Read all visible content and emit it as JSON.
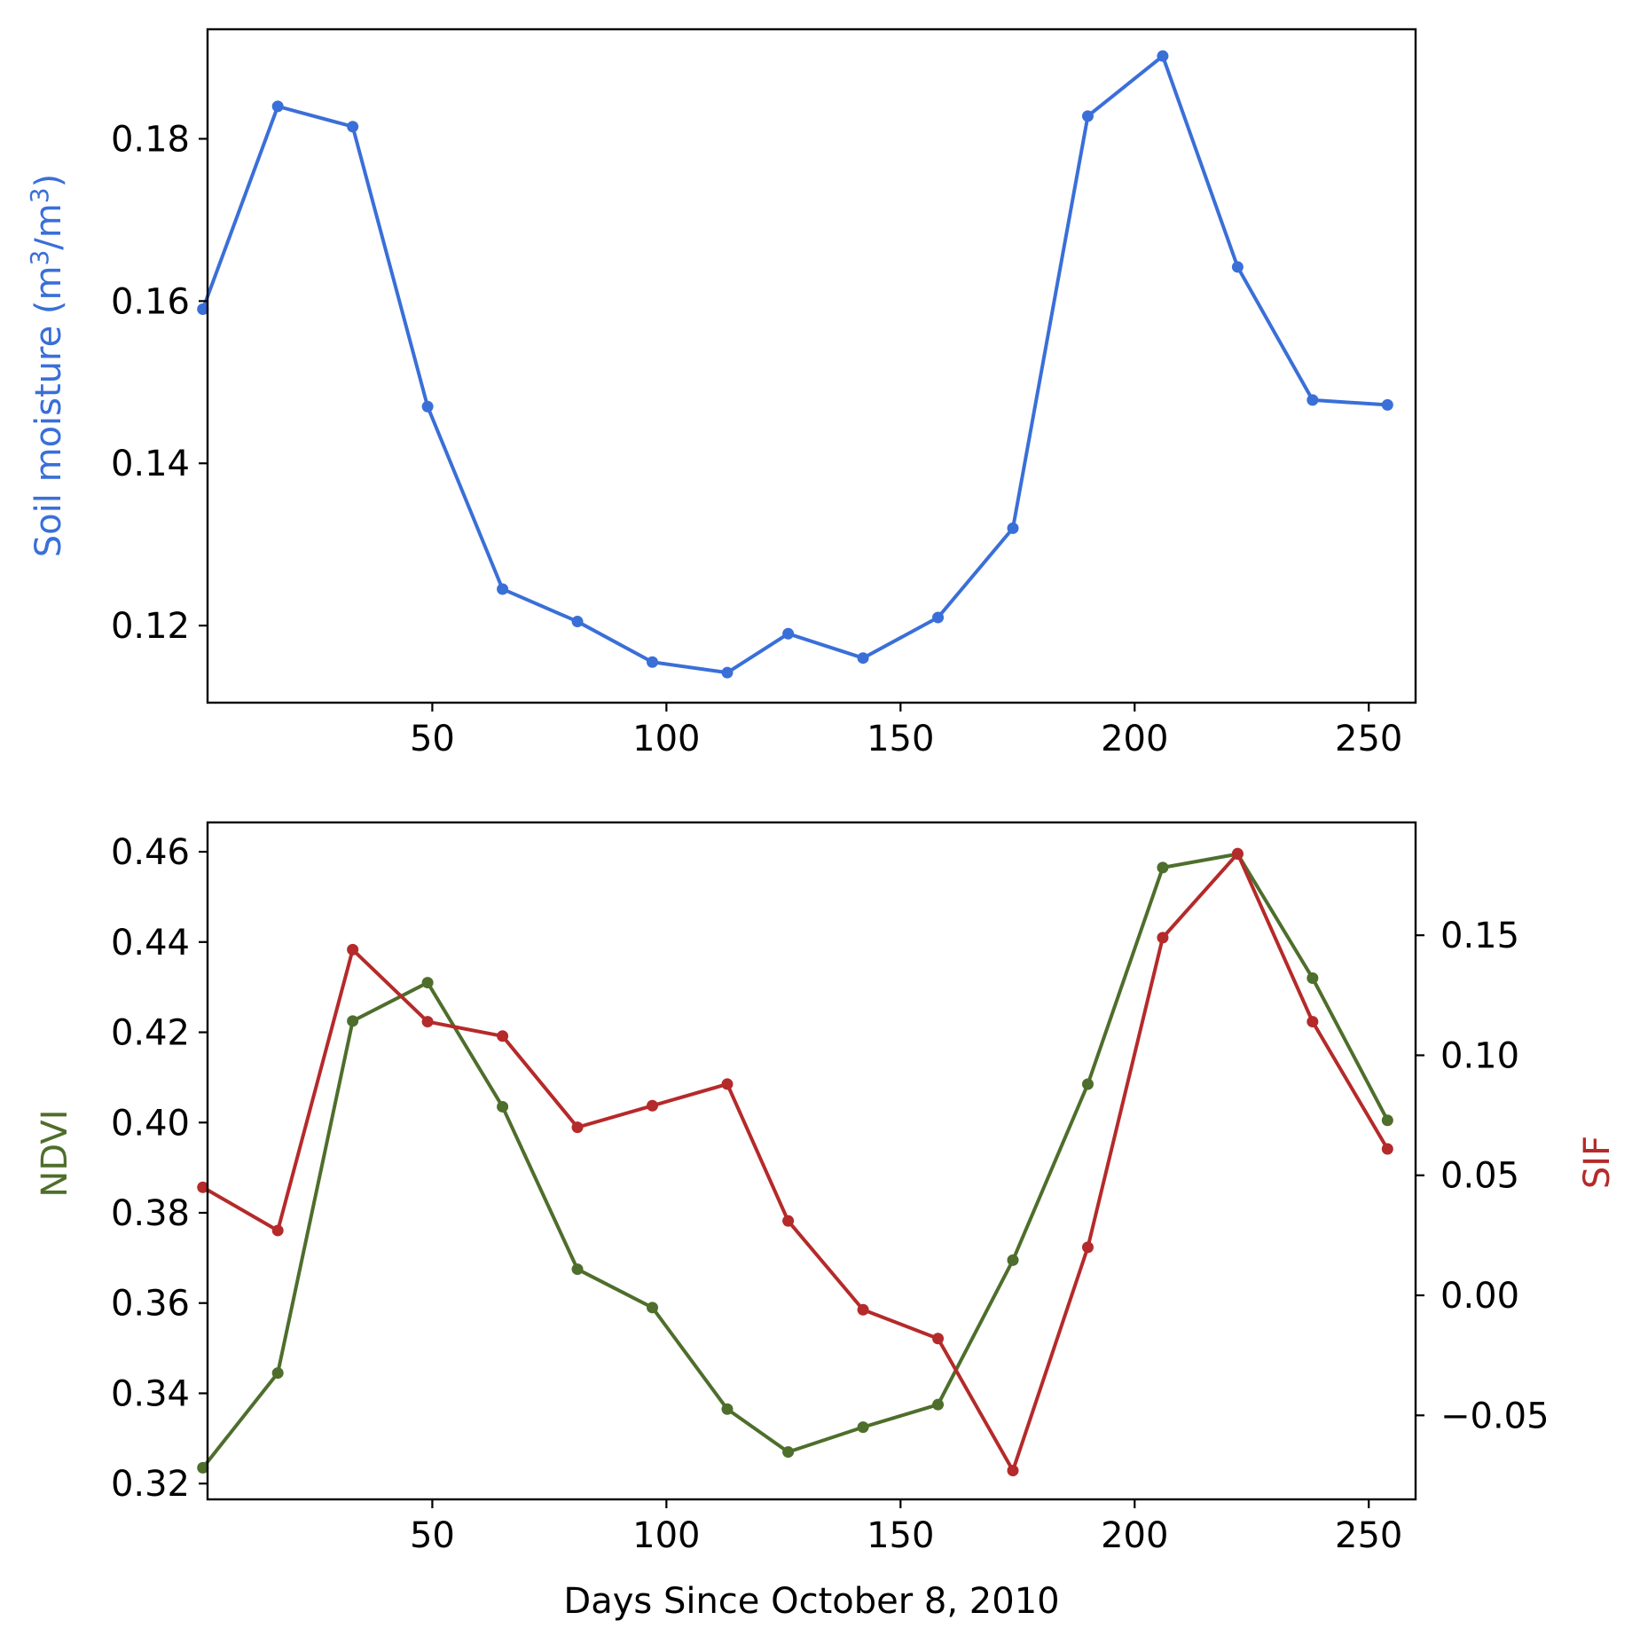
{
  "chart_data": [
    {
      "type": "line",
      "title": "",
      "xlabel": "",
      "ylabel_main": "Soil moisture (m",
      "ylabel_sup1": "3",
      "ylabel_mid": "/m",
      "ylabel_sup2": "3",
      "ylabel_end": ")",
      "xlim": [
        2,
        260
      ],
      "ylim": [
        0.1105,
        0.1935
      ],
      "xticks": [
        50,
        100,
        150,
        200,
        250
      ],
      "xtick_labels": [
        "50",
        "100",
        "150",
        "200",
        "250"
      ],
      "yticks": [
        0.12,
        0.14,
        0.16,
        0.18
      ],
      "ytick_labels": [
        "0.12",
        "0.14",
        "0.16",
        "0.18"
      ],
      "series": [
        {
          "name": "Soil moisture",
          "color": "#3a6fd8",
          "x": [
            1,
            17,
            33,
            49,
            65,
            81,
            97,
            113,
            126,
            142,
            158,
            174,
            190,
            206,
            222,
            238,
            254
          ],
          "values": [
            0.159,
            0.184,
            0.1815,
            0.147,
            0.1245,
            0.1205,
            0.1155,
            0.1142,
            0.119,
            0.116,
            0.121,
            0.132,
            0.1828,
            0.1902,
            0.1642,
            0.1478,
            0.1472
          ]
        }
      ]
    },
    {
      "type": "line",
      "title": "",
      "xlabel": "Days Since October 8, 2010",
      "ylabel_left": "NDVI",
      "ylabel_right": "SIF",
      "xlim": [
        2,
        260
      ],
      "ylim_left": [
        0.3165,
        0.4665
      ],
      "ylim_right": [
        -0.085,
        0.197
      ],
      "xticks": [
        50,
        100,
        150,
        200,
        250
      ],
      "xtick_labels": [
        "50",
        "100",
        "150",
        "200",
        "250"
      ],
      "yticks_left": [
        0.32,
        0.34,
        0.36,
        0.38,
        0.4,
        0.42,
        0.44,
        0.46
      ],
      "ytick_labels_left": [
        "0.32",
        "0.34",
        "0.36",
        "0.38",
        "0.40",
        "0.42",
        "0.44",
        "0.46"
      ],
      "yticks_right": [
        -0.05,
        0.0,
        0.05,
        0.1,
        0.15
      ],
      "ytick_labels_right": [
        "−0.05",
        "0.00",
        "0.05",
        "0.10",
        "0.15"
      ],
      "series": [
        {
          "name": "NDVI",
          "axis": "left",
          "color": "#4e6e2c",
          "x": [
            1,
            17,
            33,
            49,
            65,
            81,
            97,
            113,
            126,
            142,
            158,
            174,
            190,
            206,
            222,
            238,
            254
          ],
          "values": [
            0.3235,
            0.3445,
            0.4225,
            0.431,
            0.4035,
            0.3675,
            0.359,
            0.3365,
            0.327,
            0.3325,
            0.3375,
            0.3695,
            0.4085,
            0.4565,
            0.4595,
            0.432,
            0.4005
          ]
        },
        {
          "name": "SIF",
          "axis": "right",
          "color": "#b52a2a",
          "x": [
            1,
            17,
            33,
            49,
            65,
            81,
            97,
            113,
            126,
            142,
            158,
            174,
            190,
            206,
            222,
            238,
            254
          ],
          "values": [
            0.045,
            0.027,
            0.144,
            0.114,
            0.108,
            0.07,
            0.079,
            0.088,
            0.031,
            -0.006,
            -0.018,
            -0.073,
            0.02,
            0.149,
            0.184,
            0.114,
            0.061
          ]
        }
      ]
    }
  ]
}
